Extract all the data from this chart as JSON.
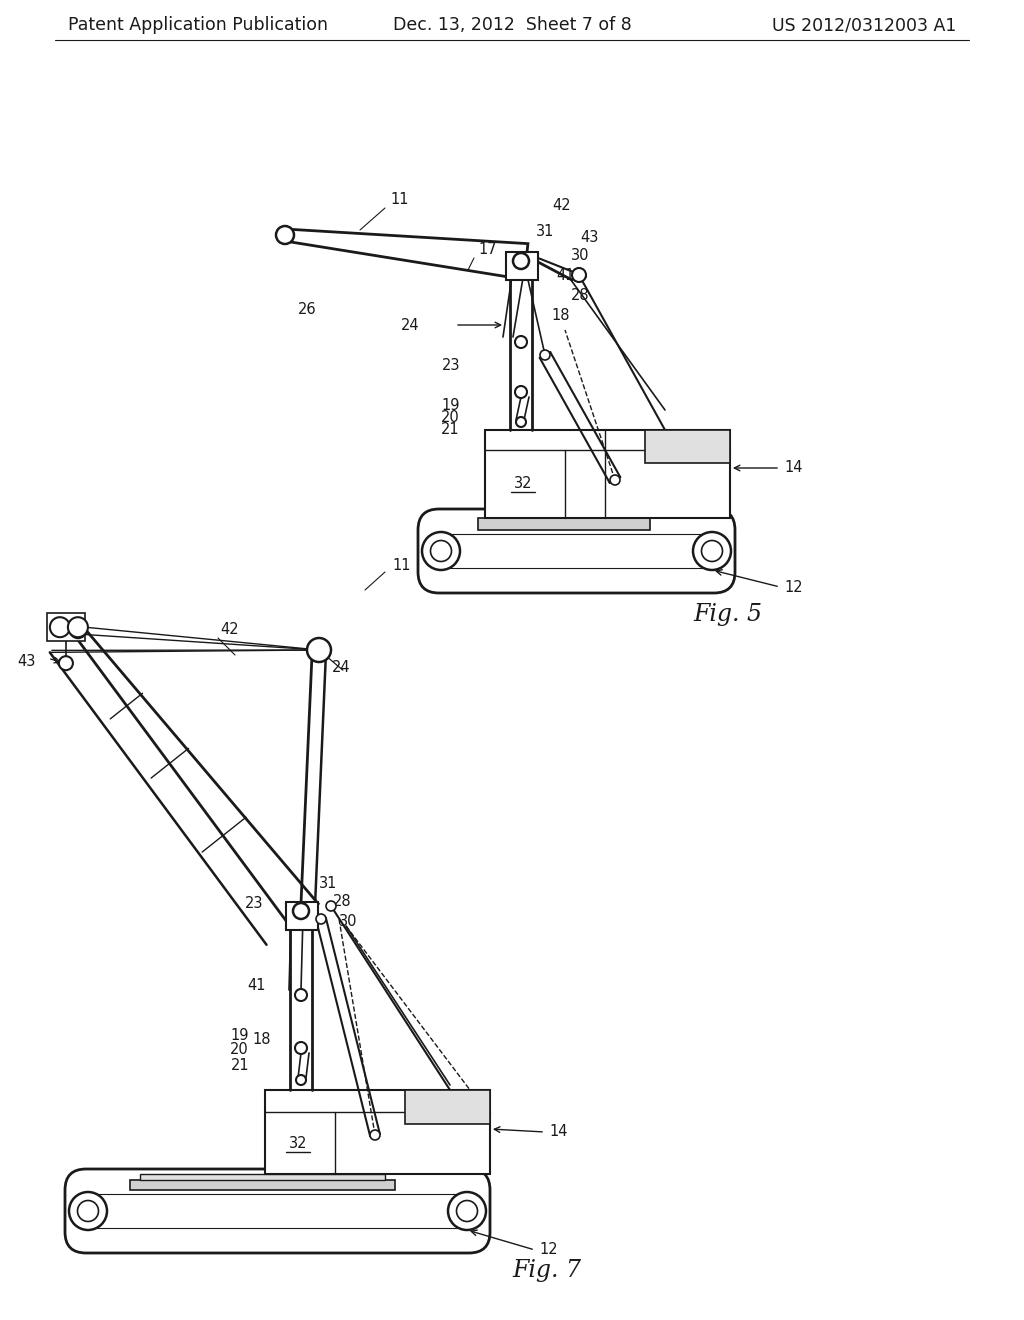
{
  "background_color": "#ffffff",
  "header_left": "Patent Application Publication",
  "header_center": "Dec. 13, 2012  Sheet 7 of 8",
  "header_right": "US 2012/0312003 A1",
  "fig5_label": "Fig. 5",
  "fig7_label": "Fig. 7",
  "lc": "#1a1a1a",
  "tc": "#1a1a1a"
}
